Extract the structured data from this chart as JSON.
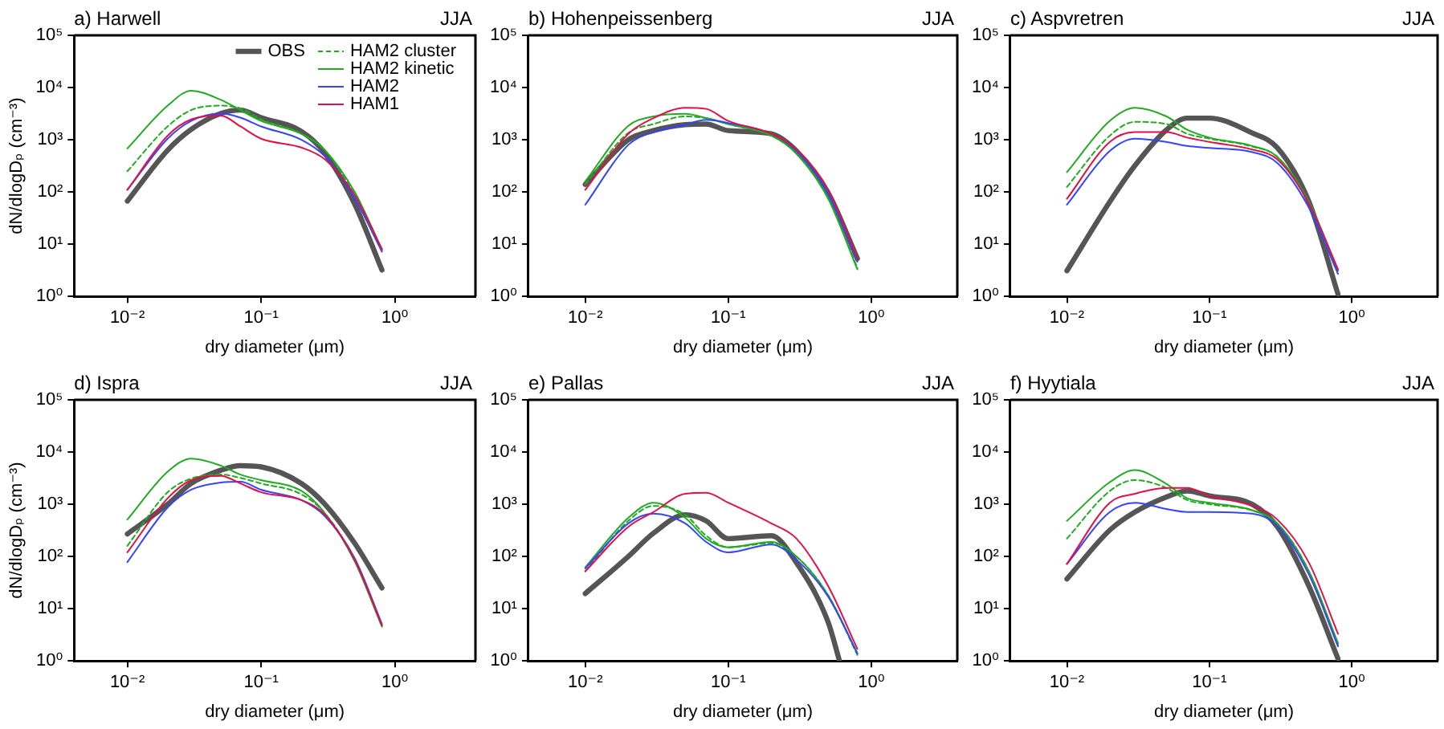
{
  "chart_data": [
    {
      "type": "line",
      "title": "a) Harwell",
      "annotations": [
        "JJA"
      ],
      "xlabel": "dry diameter (μm)",
      "ylabel": "dN/dlogDₚ (cm⁻³)",
      "log": "xy",
      "legend": "top right",
      "marker": "none",
      "xlim": [
        0.004,
        4
      ],
      "ylim": [
        1,
        100000
      ],
      "xticks": [
        {
          "value": 0.01,
          "label": "10⁻²"
        },
        {
          "value": 0.1,
          "label": "10⁻¹"
        },
        {
          "value": 1,
          "label": "10⁰"
        }
      ],
      "yticks": [
        {
          "value": 1,
          "label": "10⁰"
        },
        {
          "value": 10,
          "label": "10¹"
        },
        {
          "value": 100,
          "label": "10²"
        },
        {
          "value": 1000,
          "label": "10³"
        },
        {
          "value": 10000,
          "label": "10⁴"
        },
        {
          "value": 100000,
          "label": "10⁵"
        }
      ],
      "x": [
        0.01,
        0.02,
        0.03,
        0.05,
        0.07,
        0.1,
        0.2,
        0.3,
        0.5,
        0.8
      ],
      "series": [
        {
          "name": "OBS",
          "color": "#555555",
          "values": [
            67,
            630,
            1580,
            3200,
            3700,
            2650,
            1450,
            550,
            59,
            3.2
          ]
        },
        {
          "name": "HAM2 cluster",
          "color": "#22aa22",
          "line_style": "dashed",
          "values": [
            250,
            1800,
            3700,
            4500,
            4000,
            2450,
            1300,
            630,
            87,
            7.6
          ]
        },
        {
          "name": "HAM2 kinetic",
          "color": "#22aa22",
          "values": [
            680,
            4500,
            8700,
            5800,
            3700,
            2300,
            1300,
            630,
            100,
            8
          ]
        },
        {
          "name": "HAM2",
          "color": "#3344ff",
          "values": [
            110,
            1050,
            2300,
            3200,
            2650,
            1800,
            1000,
            480,
            76,
            7.2
          ]
        },
        {
          "name": "HAM1",
          "color": "#e0104a",
          "values": [
            110,
            1200,
            2450,
            2900,
            1800,
            1050,
            710,
            420,
            87,
            8
          ]
        }
      ]
    },
    {
      "type": "line",
      "title": "b) Hohenpeissenberg",
      "annotations": [
        "JJA"
      ],
      "xlabel": "dry diameter (μm)",
      "log": "xy",
      "marker": "none",
      "xlim": [
        0.004,
        4
      ],
      "ylim": [
        1,
        100000
      ],
      "xticks": [
        {
          "value": 0.01,
          "label": "10⁻²"
        },
        {
          "value": 0.1,
          "label": "10⁻¹"
        },
        {
          "value": 1,
          "label": "10⁰"
        }
      ],
      "yticks": [
        {
          "value": 1,
          "label": "10⁰"
        },
        {
          "value": 10,
          "label": "10¹"
        },
        {
          "value": 100,
          "label": "10²"
        },
        {
          "value": 1000,
          "label": "10³"
        },
        {
          "value": 10000,
          "label": "10⁴"
        },
        {
          "value": 100000,
          "label": "10⁵"
        }
      ],
      "x": [
        0.01,
        0.02,
        0.03,
        0.05,
        0.07,
        0.1,
        0.2,
        0.3,
        0.5,
        0.8
      ],
      "series": [
        {
          "color": "#555555",
          "values": [
            140,
            1000,
            1500,
            1950,
            2000,
            1500,
            1300,
            610,
            96,
            5.3
          ]
        },
        {
          "color": "#22aa22",
          "line_style": "dashed",
          "values": [
            140,
            1350,
            2000,
            2800,
            2600,
            2000,
            1200,
            570,
            78,
            3.5
          ]
        },
        {
          "color": "#22aa22",
          "values": [
            160,
            1850,
            2800,
            3150,
            2600,
            2000,
            1200,
            540,
            74,
            3.3
          ]
        },
        {
          "color": "#3344ff",
          "values": [
            57,
            800,
            1400,
            1950,
            2400,
            2100,
            1300,
            610,
            91,
            4.6
          ]
        },
        {
          "color": "#e0104a",
          "values": [
            110,
            1300,
            2600,
            4100,
            3900,
            2300,
            1300,
            650,
            110,
            5.3
          ]
        }
      ]
    },
    {
      "type": "line",
      "title": "c) Aspvretren",
      "annotations": [
        "JJA"
      ],
      "xlabel": "dry diameter (μm)",
      "log": "xy",
      "marker": "none",
      "xlim": [
        0.004,
        4
      ],
      "ylim": [
        1,
        100000
      ],
      "xticks": [
        {
          "value": 0.01,
          "label": "10⁻²"
        },
        {
          "value": 0.1,
          "label": "10⁻¹"
        },
        {
          "value": 1,
          "label": "10⁰"
        }
      ],
      "yticks": [
        {
          "value": 1,
          "label": "10⁰"
        },
        {
          "value": 10,
          "label": "10¹"
        },
        {
          "value": 100,
          "label": "10²"
        },
        {
          "value": 1000,
          "label": "10³"
        },
        {
          "value": 10000,
          "label": "10⁴"
        },
        {
          "value": 100000,
          "label": "10⁵"
        }
      ],
      "x": [
        0.01,
        0.02,
        0.03,
        0.05,
        0.07,
        0.1,
        0.2,
        0.3,
        0.5,
        0.8
      ],
      "series": [
        {
          "color": "#555555",
          "values": [
            3.1,
            65,
            320,
            1550,
            2600,
            2600,
            1350,
            700,
            65,
            1.1
          ]
        },
        {
          "color": "#22aa22",
          "line_style": "dashed",
          "values": [
            125,
            1200,
            2200,
            2000,
            1300,
            1050,
            740,
            470,
            60,
            2.9
          ]
        },
        {
          "color": "#22aa22",
          "values": [
            240,
            2300,
            4100,
            2800,
            1550,
            1100,
            760,
            470,
            65,
            3.1
          ]
        },
        {
          "color": "#3344ff",
          "values": [
            57,
            610,
            1050,
            910,
            760,
            700,
            580,
            360,
            50,
            2.7
          ]
        },
        {
          "color": "#e0104a",
          "values": [
            74,
            910,
            1400,
            1400,
            1100,
            910,
            650,
            420,
            60,
            3.3
          ]
        }
      ]
    },
    {
      "type": "line",
      "title": "d) Ispra",
      "annotations": [
        "JJA"
      ],
      "xlabel": "dry diameter (μm)",
      "ylabel": "dN/dlogDₚ (cm⁻³)",
      "log": "xy",
      "marker": "none",
      "xlim": [
        0.004,
        4
      ],
      "ylim": [
        1,
        100000
      ],
      "xticks": [
        {
          "value": 0.01,
          "label": "10⁻²"
        },
        {
          "value": 0.1,
          "label": "10⁻¹"
        },
        {
          "value": 1,
          "label": "10⁰"
        }
      ],
      "yticks": [
        {
          "value": 1,
          "label": "10⁰"
        },
        {
          "value": 10,
          "label": "10¹"
        },
        {
          "value": 100,
          "label": "10²"
        },
        {
          "value": 1000,
          "label": "10³"
        },
        {
          "value": 10000,
          "label": "10⁴"
        },
        {
          "value": 100000,
          "label": "10⁵"
        }
      ],
      "x": [
        0.01,
        0.02,
        0.03,
        0.05,
        0.07,
        0.1,
        0.2,
        0.3,
        0.5,
        0.8
      ],
      "series": [
        {
          "color": "#555555",
          "values": [
            270,
            1000,
            2500,
            4500,
            5500,
            5200,
            2500,
            1000,
            180,
            25
          ]
        },
        {
          "color": "#22aa22",
          "line_style": "dashed",
          "values": [
            160,
            1700,
            3100,
            3700,
            3200,
            2500,
            1550,
            670,
            86,
            4.8
          ]
        },
        {
          "color": "#22aa22",
          "values": [
            510,
            4200,
            7500,
            5500,
            3700,
            2900,
            1800,
            670,
            81,
            4.5
          ]
        },
        {
          "color": "#3344ff",
          "values": [
            78,
            870,
            1900,
            2600,
            2700,
            1900,
            1200,
            590,
            93,
            5.1
          ]
        },
        {
          "color": "#e0104a",
          "values": [
            120,
            1300,
            2900,
            3500,
            2500,
            1700,
            1200,
            630,
            86,
            4.8
          ]
        }
      ]
    },
    {
      "type": "line",
      "title": "e) Pallas",
      "annotations": [
        "JJA"
      ],
      "xlabel": "dry diameter (μm)",
      "log": "xy",
      "marker": "none",
      "xlim": [
        0.004,
        4
      ],
      "ylim": [
        1,
        100000
      ],
      "xticks": [
        {
          "value": 0.01,
          "label": "10⁻²"
        },
        {
          "value": 0.1,
          "label": "10⁻¹"
        },
        {
          "value": 1,
          "label": "10⁰"
        }
      ],
      "yticks": [
        {
          "value": 1,
          "label": "10⁰"
        },
        {
          "value": 10,
          "label": "10¹"
        },
        {
          "value": 100,
          "label": "10²"
        },
        {
          "value": 1000,
          "label": "10³"
        },
        {
          "value": 10000,
          "label": "10⁴"
        },
        {
          "value": 100000,
          "label": "10⁵"
        }
      ],
      "x": [
        0.01,
        0.02,
        0.03,
        0.05,
        0.07,
        0.1,
        0.2,
        0.3,
        0.5,
        0.8
      ],
      "series": [
        {
          "color": "#555555",
          "x": [
            0.01,
            0.02,
            0.03,
            0.05,
            0.07,
            0.1,
            0.2,
            0.3,
            0.5,
            0.6
          ],
          "values": [
            19.5,
            100,
            280,
            630,
            480,
            220,
            250,
            76,
            5.5,
            1
          ]
        },
        {
          "color": "#22aa22",
          "line_style": "dashed",
          "values": [
            52,
            480,
            930,
            630,
            250,
            150,
            180,
            100,
            18,
            1.3
          ]
        },
        {
          "color": "#22aa22",
          "values": [
            62,
            550,
            1070,
            550,
            220,
            150,
            190,
            100,
            18,
            1.4
          ]
        },
        {
          "color": "#3344ff",
          "values": [
            59,
            430,
            660,
            430,
            190,
            120,
            170,
            87,
            17,
            1.4
          ]
        },
        {
          "color": "#e0104a",
          "values": [
            52,
            370,
            710,
            1590,
            1660,
            1070,
            430,
            220,
            27,
            1.7
          ]
        }
      ]
    },
    {
      "type": "line",
      "title": "f) Hyytiala",
      "annotations": [
        "JJA"
      ],
      "xlabel": "dry diameter (μm)",
      "log": "xy",
      "marker": "none",
      "xlim": [
        0.004,
        4
      ],
      "ylim": [
        1,
        100000
      ],
      "xticks": [
        {
          "value": 0.01,
          "label": "10⁻²"
        },
        {
          "value": 0.1,
          "label": "10⁻¹"
        },
        {
          "value": 1,
          "label": "10⁰"
        }
      ],
      "yticks": [
        {
          "value": 1,
          "label": "10⁰"
        },
        {
          "value": 10,
          "label": "10¹"
        },
        {
          "value": 100,
          "label": "10²"
        },
        {
          "value": 1000,
          "label": "10³"
        },
        {
          "value": 10000,
          "label": "10⁴"
        },
        {
          "value": 100000,
          "label": "10⁵"
        }
      ],
      "x": [
        0.01,
        0.02,
        0.03,
        0.05,
        0.07,
        0.1,
        0.2,
        0.3,
        0.5,
        0.8
      ],
      "series": [
        {
          "color": "#555555",
          "values": [
            37,
            320,
            710,
            1380,
            1800,
            1450,
            1000,
            370,
            27,
            1.1
          ]
        },
        {
          "color": "#22aa22",
          "line_style": "dashed",
          "values": [
            220,
            1800,
            2900,
            2050,
            1200,
            1000,
            760,
            430,
            52,
            2
          ]
        },
        {
          "color": "#22aa22",
          "values": [
            480,
            2650,
            4500,
            2450,
            1300,
            1070,
            770,
            430,
            52,
            2.2
          ]
        },
        {
          "color": "#3344ff",
          "values": [
            72,
            710,
            1070,
            810,
            710,
            710,
            660,
            390,
            45,
            1.9
          ]
        },
        {
          "color": "#e0104a",
          "values": [
            72,
            1070,
            1590,
            2050,
            2050,
            1450,
            930,
            510,
            76,
            3.3
          ]
        }
      ]
    }
  ]
}
